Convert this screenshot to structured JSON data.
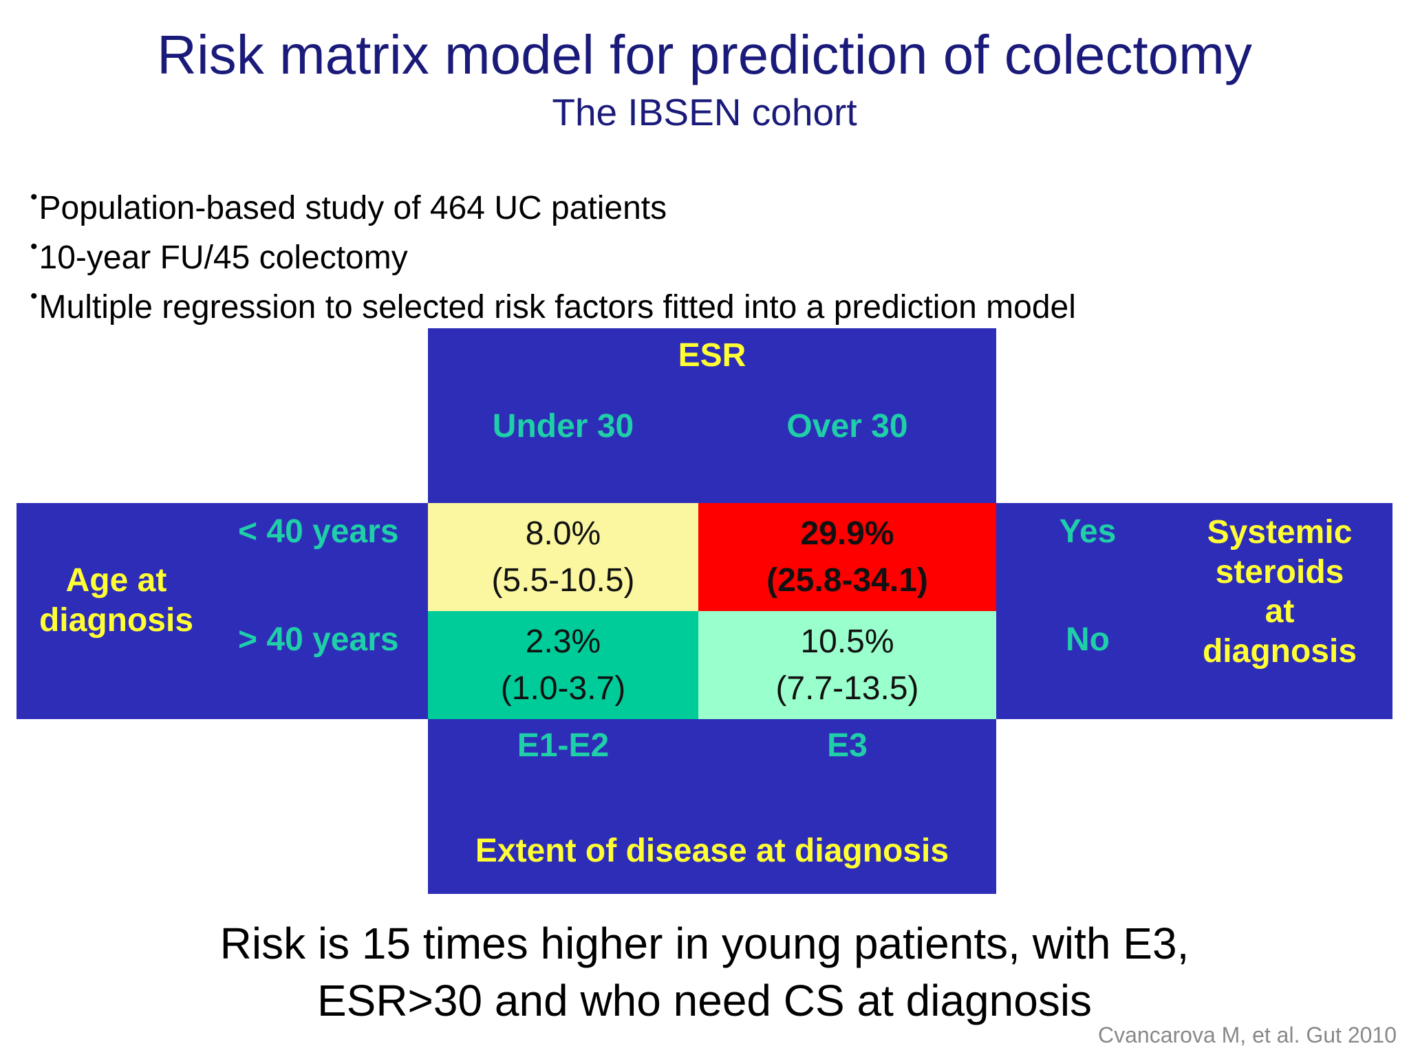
{
  "title": "Risk matrix model for prediction of colectomy",
  "subtitle": "The IBSEN cohort",
  "bullets": [
    "Population-based study of 464 UC patients",
    "10-year FU/45 colectomy",
    "Multiple regression to selected risk factors fitted into a prediction model"
  ],
  "matrix": {
    "esr_header": "ESR",
    "col_labels": [
      "Under 30",
      "Over 30"
    ],
    "age_header_line1": "Age at",
    "age_header_line2": "diagnosis",
    "row_labels": [
      "< 40 years",
      "> 40 years"
    ],
    "steroid_options": [
      "Yes",
      "No"
    ],
    "steroid_header": [
      "Systemic",
      "steroids",
      "at",
      "diagnosis"
    ],
    "extent_labels": [
      "E1-E2",
      "E3"
    ],
    "extent_header": "Extent of disease at diagnosis",
    "cells": [
      [
        {
          "value": "8.0%",
          "ci": "(5.5-10.5)",
          "color": "#fbf7a0"
        },
        {
          "value": "29.9%",
          "ci": "(25.8-34.1)",
          "color": "#ff0000"
        }
      ],
      [
        {
          "value": "2.3%",
          "ci": "(1.0-3.7)",
          "color": "#00cc99"
        },
        {
          "value": "10.5%",
          "ci": "(7.7-13.5)",
          "color": "#99ffcc"
        }
      ]
    ]
  },
  "conclusion_line1": "Risk is 15 times higher in young patients, with E3,",
  "conclusion_line2": "ESR>30 and who need CS at diagnosis",
  "citation": "Cvancarova M, et al. Gut 2010",
  "colors": {
    "blue": "#2e2db8",
    "yellow_text": "#ffff33",
    "teal_text": "#1fcfa8",
    "title": "#1a1a7a"
  }
}
